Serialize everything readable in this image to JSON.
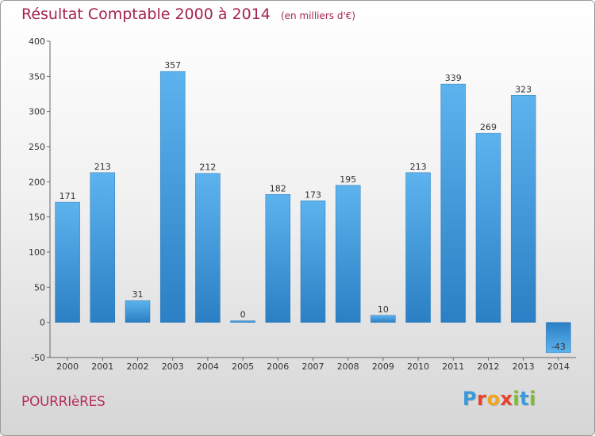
{
  "page_title": {
    "main": "Résultat Comptable 2000 à 2014",
    "unit": "(en milliers d'€)"
  },
  "commune": "POURRIèRES",
  "logo": {
    "letters": [
      "P",
      "r",
      "o",
      "x",
      "i",
      "t",
      "i"
    ],
    "colors": [
      "#3a9ad9",
      "#e8412c",
      "#f2a51b",
      "#e8412c",
      "#7cbd2f",
      "#3a9ad9",
      "#7cbd2f"
    ]
  },
  "chart_data": {
    "type": "bar",
    "title": "Résultat Comptable 2000 à 2014",
    "subtitle": "(en milliers d'€)",
    "categories": [
      "2000",
      "2001",
      "2002",
      "2003",
      "2004",
      "2005",
      "2006",
      "2007",
      "2008",
      "2009",
      "2010",
      "2011",
      "2012",
      "2013",
      "2014"
    ],
    "values": [
      171,
      213,
      31,
      357,
      212,
      0,
      182,
      173,
      195,
      10,
      213,
      339,
      269,
      323,
      -43
    ],
    "ylim": [
      -50,
      400
    ],
    "yticks": [
      -50,
      0,
      50,
      100,
      150,
      200,
      250,
      300,
      350,
      400
    ],
    "xlabel": "",
    "ylabel": "",
    "grid": false,
    "bar_color": "#3c91d6"
  }
}
